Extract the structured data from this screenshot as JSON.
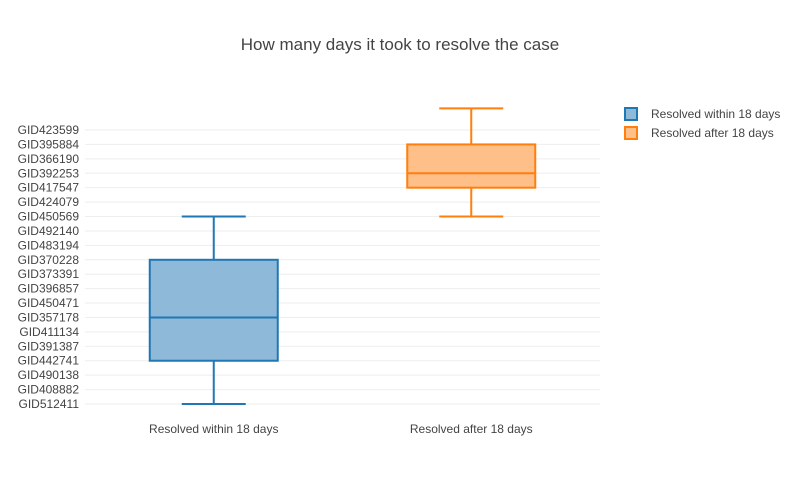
{
  "chart_data": {
    "type": "box",
    "title": "How many days it took to resolve the case",
    "xlabel": "",
    "ylabel": "",
    "orientation": "vertical",
    "y_axis_type": "category",
    "y_categories": [
      "GID512411",
      "GID408882",
      "GID490138",
      "GID442741",
      "GID391387",
      "GID411134",
      "GID357178",
      "GID450471",
      "GID396857",
      "GID373391",
      "GID370228",
      "GID483194",
      "GID492140",
      "GID450569",
      "GID424079",
      "GID417547",
      "GID392253",
      "GID366190",
      "GID395884",
      "GID423599"
    ],
    "x_categories": [
      "Resolved within 18 days",
      "Resolved after 18 days"
    ],
    "series": [
      {
        "name": "Resolved within 18 days",
        "color": "#1f77b4",
        "fill": "#8fb9d9",
        "whisker_low": "GID512411",
        "q1": "GID442741",
        "median": "GID357178",
        "q3": "GID370228",
        "whisker_high": "GID450569"
      },
      {
        "name": "Resolved after 18 days",
        "color": "#ff7f0e",
        "fill": "#ffbf88",
        "whisker_low": "GID450569",
        "q1": "GID417547",
        "median": "GID392253",
        "q3": "GID395884",
        "whisker_high_position": 20.5
      }
    ],
    "grid": true,
    "legend_position": "top-right"
  }
}
